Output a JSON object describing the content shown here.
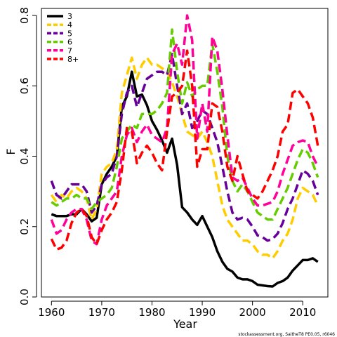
{
  "chart_data": {
    "type": "line",
    "xlabel": "Year",
    "ylabel": "F",
    "xlim": [
      1958,
      2015
    ],
    "ylim": [
      0,
      0.82
    ],
    "x_ticks": [
      1960,
      1970,
      1980,
      1990,
      2000,
      2010
    ],
    "y_ticks": [
      0.0,
      0.2,
      0.4,
      0.6,
      0.8
    ],
    "y_tick_labels": [
      "0.0",
      "0.2",
      "0.4",
      "0.6",
      "0.8"
    ],
    "grid": false,
    "legend_position": "top-left",
    "footnote": "stockassessment.org, SaitheT8 PE0.05, r6046",
    "x": [
      1960,
      1961,
      1962,
      1963,
      1964,
      1965,
      1966,
      1967,
      1968,
      1969,
      1970,
      1971,
      1972,
      1973,
      1974,
      1975,
      1976,
      1977,
      1978,
      1979,
      1980,
      1981,
      1982,
      1983,
      1984,
      1985,
      1986,
      1987,
      1988,
      1989,
      1990,
      1991,
      1992,
      1993,
      1994,
      1995,
      1996,
      1997,
      1998,
      1999,
      2000,
      2001,
      2002,
      2003,
      2004,
      2005,
      2006,
      2007,
      2008,
      2009,
      2010,
      2011,
      2012,
      2013
    ],
    "series": [
      {
        "name": "3",
        "color": "#000000",
        "dash": "solid",
        "values": [
          0.235,
          0.23,
          0.23,
          0.23,
          0.235,
          0.235,
          0.25,
          0.235,
          0.215,
          0.225,
          0.32,
          0.35,
          0.37,
          0.4,
          0.54,
          0.57,
          0.64,
          0.57,
          0.575,
          0.545,
          0.5,
          0.475,
          0.445,
          0.41,
          0.45,
          0.375,
          0.255,
          0.24,
          0.22,
          0.205,
          0.23,
          0.2,
          0.17,
          0.13,
          0.1,
          0.08,
          0.072,
          0.055,
          0.05,
          0.05,
          0.045,
          0.035,
          0.033,
          0.031,
          0.03,
          0.04,
          0.045,
          0.055,
          0.075,
          0.09,
          0.105,
          0.105,
          0.11,
          0.1
        ]
      },
      {
        "name": "4",
        "color": "#FFCC00",
        "dash": "dashed",
        "values": [
          0.29,
          0.27,
          0.29,
          0.28,
          0.3,
          0.31,
          0.3,
          0.28,
          0.22,
          0.25,
          0.35,
          0.37,
          0.38,
          0.42,
          0.58,
          0.63,
          0.68,
          0.62,
          0.66,
          0.68,
          0.66,
          0.66,
          0.65,
          0.64,
          0.61,
          0.57,
          0.52,
          0.47,
          0.46,
          0.45,
          0.47,
          0.44,
          0.4,
          0.33,
          0.26,
          0.22,
          0.2,
          0.18,
          0.16,
          0.16,
          0.15,
          0.13,
          0.12,
          0.12,
          0.11,
          0.13,
          0.16,
          0.18,
          0.22,
          0.28,
          0.31,
          0.3,
          0.29,
          0.26
        ]
      },
      {
        "name": "5",
        "color": "#660099",
        "dash": "dashed",
        "values": [
          0.33,
          0.29,
          0.28,
          0.3,
          0.32,
          0.32,
          0.32,
          0.3,
          0.24,
          0.26,
          0.32,
          0.34,
          0.35,
          0.4,
          0.52,
          0.58,
          0.6,
          0.54,
          0.58,
          0.62,
          0.63,
          0.64,
          0.64,
          0.63,
          0.69,
          0.6,
          0.52,
          0.55,
          0.48,
          0.5,
          0.53,
          0.52,
          0.48,
          0.44,
          0.37,
          0.3,
          0.24,
          0.22,
          0.225,
          0.22,
          0.2,
          0.175,
          0.17,
          0.16,
          0.165,
          0.18,
          0.21,
          0.25,
          0.28,
          0.32,
          0.36,
          0.35,
          0.33,
          0.29
        ]
      },
      {
        "name": "6",
        "color": "#66CC00",
        "dash": "dashed",
        "values": [
          0.27,
          0.26,
          0.27,
          0.28,
          0.28,
          0.29,
          0.28,
          0.28,
          0.25,
          0.27,
          0.28,
          0.29,
          0.31,
          0.37,
          0.45,
          0.47,
          0.49,
          0.48,
          0.52,
          0.52,
          0.52,
          0.53,
          0.55,
          0.58,
          0.76,
          0.64,
          0.55,
          0.61,
          0.57,
          0.59,
          0.6,
          0.6,
          0.72,
          0.64,
          0.54,
          0.4,
          0.33,
          0.3,
          0.32,
          0.3,
          0.27,
          0.24,
          0.23,
          0.22,
          0.22,
          0.25,
          0.28,
          0.31,
          0.35,
          0.39,
          0.42,
          0.41,
          0.38,
          0.34
        ]
      },
      {
        "name": "7",
        "color": "#FF0099",
        "dash": "dashed",
        "values": [
          0.22,
          0.18,
          0.19,
          0.22,
          0.24,
          0.25,
          0.25,
          0.22,
          0.16,
          0.15,
          0.22,
          0.26,
          0.28,
          0.3,
          0.4,
          0.46,
          0.48,
          0.44,
          0.47,
          0.49,
          0.46,
          0.45,
          0.44,
          0.48,
          0.69,
          0.72,
          0.66,
          0.8,
          0.73,
          0.45,
          0.55,
          0.47,
          0.74,
          0.7,
          0.59,
          0.46,
          0.34,
          0.33,
          0.34,
          0.31,
          0.28,
          0.26,
          0.26,
          0.265,
          0.27,
          0.3,
          0.35,
          0.39,
          0.43,
          0.44,
          0.445,
          0.44,
          0.4,
          0.37
        ]
      },
      {
        "name": "8+",
        "color": "#FF0000",
        "dash": "dashed",
        "values": [
          0.165,
          0.135,
          0.14,
          0.16,
          0.21,
          0.24,
          0.25,
          0.23,
          0.17,
          0.15,
          0.19,
          0.22,
          0.24,
          0.27,
          0.36,
          0.48,
          0.47,
          0.38,
          0.41,
          0.43,
          0.41,
          0.38,
          0.36,
          0.47,
          0.57,
          0.58,
          0.6,
          0.7,
          0.6,
          0.37,
          0.42,
          0.42,
          0.55,
          0.54,
          0.47,
          0.37,
          0.33,
          0.4,
          0.35,
          0.3,
          0.29,
          0.28,
          0.3,
          0.33,
          0.36,
          0.4,
          0.47,
          0.49,
          0.58,
          0.59,
          0.57,
          0.55,
          0.51,
          0.43
        ]
      }
    ]
  }
}
